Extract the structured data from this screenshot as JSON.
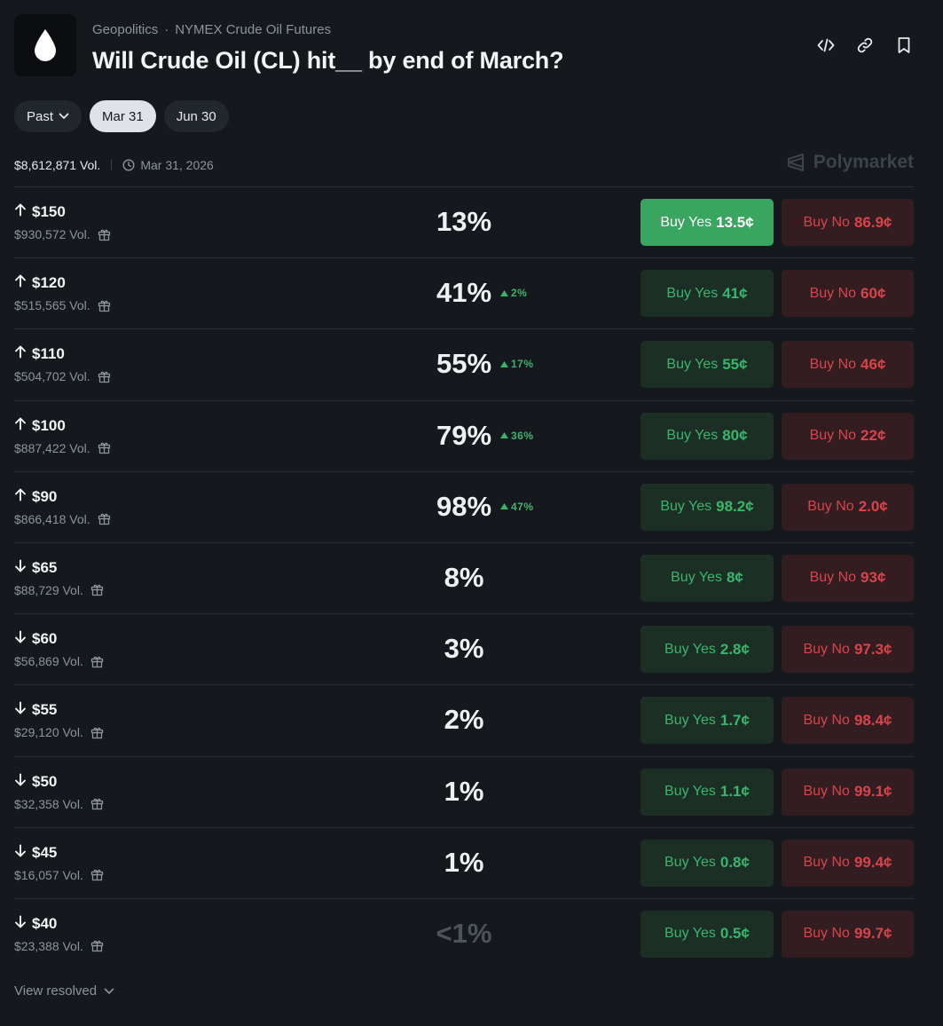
{
  "header": {
    "category": "Geopolitics",
    "separator": "·",
    "subcategory": "NYMEX Crude Oil Futures",
    "title": "Will Crude Oil (CL) hit__ by end of March?"
  },
  "actions": [
    "embed-icon",
    "link-icon",
    "bookmark-icon"
  ],
  "filters": [
    {
      "label": "Past",
      "has_chevron": true,
      "active": false
    },
    {
      "label": "Mar 31",
      "active": true
    },
    {
      "label": "Jun 30",
      "active": false
    }
  ],
  "meta": {
    "volume": "$8,612,871 Vol.",
    "date": "Mar 31, 2026"
  },
  "brand": "Polymarket",
  "markets": [
    {
      "direction": "up",
      "label": "$150",
      "volume": "$930,572 Vol.",
      "pct": "13%",
      "change": "",
      "yes_label": "Buy Yes",
      "yes_price": "13.5¢",
      "no_label": "Buy No",
      "no_price": "86.9¢",
      "highlighted": true
    },
    {
      "direction": "up",
      "label": "$120",
      "volume": "$515,565 Vol.",
      "pct": "41%",
      "change": "2%",
      "yes_label": "Buy Yes",
      "yes_price": "41¢",
      "no_label": "Buy No",
      "no_price": "60¢"
    },
    {
      "direction": "up",
      "label": "$110",
      "volume": "$504,702 Vol.",
      "pct": "55%",
      "change": "17%",
      "yes_label": "Buy Yes",
      "yes_price": "55¢",
      "no_label": "Buy No",
      "no_price": "46¢"
    },
    {
      "direction": "up",
      "label": "$100",
      "volume": "$887,422 Vol.",
      "pct": "79%",
      "change": "36%",
      "yes_label": "Buy Yes",
      "yes_price": "80¢",
      "no_label": "Buy No",
      "no_price": "22¢"
    },
    {
      "direction": "up",
      "label": "$90",
      "volume": "$866,418 Vol.",
      "pct": "98%",
      "change": "47%",
      "yes_label": "Buy Yes",
      "yes_price": "98.2¢",
      "no_label": "Buy No",
      "no_price": "2.0¢"
    },
    {
      "direction": "down",
      "label": "$65",
      "volume": "$88,729 Vol.",
      "pct": "8%",
      "change": "",
      "yes_label": "Buy Yes",
      "yes_price": "8¢",
      "no_label": "Buy No",
      "no_price": "93¢"
    },
    {
      "direction": "down",
      "label": "$60",
      "volume": "$56,869 Vol.",
      "pct": "3%",
      "change": "",
      "yes_label": "Buy Yes",
      "yes_price": "2.8¢",
      "no_label": "Buy No",
      "no_price": "97.3¢"
    },
    {
      "direction": "down",
      "label": "$55",
      "volume": "$29,120 Vol.",
      "pct": "2%",
      "change": "",
      "yes_label": "Buy Yes",
      "yes_price": "1.7¢",
      "no_label": "Buy No",
      "no_price": "98.4¢"
    },
    {
      "direction": "down",
      "label": "$50",
      "volume": "$32,358 Vol.",
      "pct": "1%",
      "change": "",
      "yes_label": "Buy Yes",
      "yes_price": "1.1¢",
      "no_label": "Buy No",
      "no_price": "99.1¢"
    },
    {
      "direction": "down",
      "label": "$45",
      "volume": "$16,057 Vol.",
      "pct": "1%",
      "change": "",
      "yes_label": "Buy Yes",
      "yes_price": "0.8¢",
      "no_label": "Buy No",
      "no_price": "99.4¢"
    },
    {
      "direction": "down",
      "label": "$40",
      "volume": "$23,388 Vol.",
      "pct": "<1%",
      "change": "",
      "dim": true,
      "yes_label": "Buy Yes",
      "yes_price": "0.5¢",
      "no_label": "Buy No",
      "no_price": "99.7¢"
    }
  ],
  "footer": {
    "view_resolved": "View resolved"
  },
  "colors": {
    "background": "#15191e",
    "yes": "#3ab56d",
    "yes_highlight": "#3aa560",
    "no": "#d8434c"
  }
}
